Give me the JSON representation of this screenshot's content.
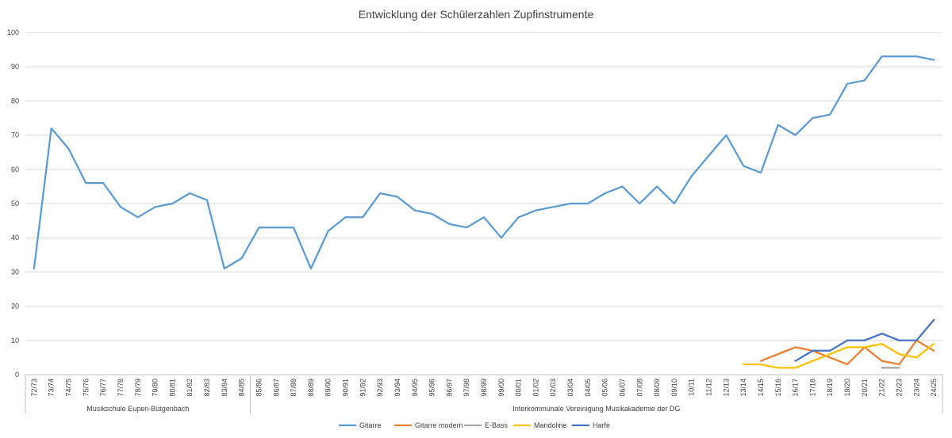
{
  "chart_data": {
    "type": "line",
    "title": "Entwicklung der Schülerzahlen Zupfinstrumente",
    "xlabel": "",
    "ylabel": "",
    "ylim": [
      0,
      100
    ],
    "yticks": [
      0,
      10,
      20,
      30,
      40,
      50,
      60,
      70,
      80,
      90,
      100
    ],
    "grid": true,
    "legend_position": "bottom",
    "categories": [
      "72/73",
      "73/74",
      "74/75",
      "75/76",
      "76/77",
      "77/78",
      "78/79",
      "79/80",
      "80/81",
      "81/82",
      "82/83",
      "83/84",
      "84/85",
      "85/86",
      "86/87",
      "87/88",
      "88/89",
      "89/90",
      "90/91",
      "91/92",
      "92/93",
      "93/94",
      "94/95",
      "95/96",
      "96/97",
      "97/98",
      "98/99",
      "99/00",
      "00/01",
      "01/02",
      "02/03",
      "03/04",
      "04/05",
      "05/06",
      "06/07",
      "07/08",
      "08/09",
      "09/10",
      "10/11",
      "11/12",
      "12/13",
      "13/14",
      "14/15",
      "15/16",
      "16/17",
      "17/18",
      "18/19",
      "19/20",
      "20/21",
      "21/22",
      "22/23",
      "23/24",
      "24/25"
    ],
    "category_groups": [
      {
        "label": "Musikschule Eupen-Bütgenbach",
        "from": 0,
        "to": 12
      },
      {
        "label": "Interkommunale Vereinigung Musikakademie der DG",
        "from": 13,
        "to": 52
      }
    ],
    "series": [
      {
        "name": "Gitarre",
        "color": "#5b9bd5",
        "values": [
          31,
          72,
          66,
          56,
          56,
          49,
          46,
          49,
          50,
          53,
          51,
          31,
          34,
          43,
          43,
          43,
          31,
          42,
          46,
          46,
          53,
          52,
          48,
          47,
          44,
          43,
          46,
          40,
          46,
          48,
          49,
          50,
          50,
          53,
          55,
          50,
          55,
          50,
          58,
          64,
          70,
          61,
          59,
          73,
          70,
          75,
          76,
          85,
          86,
          93,
          93,
          93,
          92
        ]
      },
      {
        "name": "Gitarre modern",
        "color": "#ed7d31",
        "values": [
          null,
          null,
          null,
          null,
          null,
          null,
          null,
          null,
          null,
          null,
          null,
          null,
          null,
          null,
          null,
          null,
          null,
          null,
          null,
          null,
          null,
          null,
          null,
          null,
          null,
          null,
          null,
          null,
          null,
          null,
          null,
          null,
          null,
          null,
          null,
          null,
          null,
          null,
          null,
          null,
          null,
          null,
          4,
          6,
          8,
          7,
          5,
          3,
          8,
          4,
          3,
          10,
          7
        ]
      },
      {
        "name": "E-Bass",
        "color": "#a5a5a5",
        "values": [
          null,
          null,
          null,
          null,
          null,
          null,
          null,
          null,
          null,
          null,
          null,
          null,
          null,
          null,
          null,
          null,
          null,
          null,
          null,
          null,
          null,
          null,
          null,
          null,
          null,
          null,
          null,
          null,
          null,
          null,
          null,
          null,
          null,
          null,
          null,
          null,
          null,
          null,
          null,
          null,
          null,
          null,
          null,
          null,
          null,
          null,
          null,
          null,
          null,
          2,
          2,
          null,
          null
        ]
      },
      {
        "name": "Mandoline",
        "color": "#ffc000",
        "values": [
          null,
          null,
          null,
          null,
          null,
          null,
          null,
          null,
          null,
          null,
          null,
          null,
          null,
          null,
          null,
          null,
          null,
          null,
          null,
          null,
          null,
          null,
          null,
          null,
          null,
          null,
          null,
          null,
          null,
          null,
          null,
          null,
          null,
          null,
          null,
          null,
          null,
          null,
          null,
          null,
          null,
          3,
          3,
          2,
          2,
          4,
          6,
          8,
          8,
          9,
          6,
          5,
          9
        ]
      },
      {
        "name": "Harfe",
        "color": "#4472c4",
        "values": [
          null,
          null,
          null,
          null,
          null,
          null,
          null,
          null,
          null,
          null,
          null,
          null,
          null,
          null,
          null,
          null,
          null,
          null,
          null,
          null,
          null,
          null,
          null,
          null,
          null,
          null,
          null,
          null,
          null,
          null,
          null,
          null,
          null,
          null,
          null,
          null,
          null,
          null,
          null,
          null,
          null,
          null,
          null,
          null,
          4,
          7,
          7,
          10,
          10,
          12,
          10,
          10,
          16
        ]
      }
    ]
  }
}
